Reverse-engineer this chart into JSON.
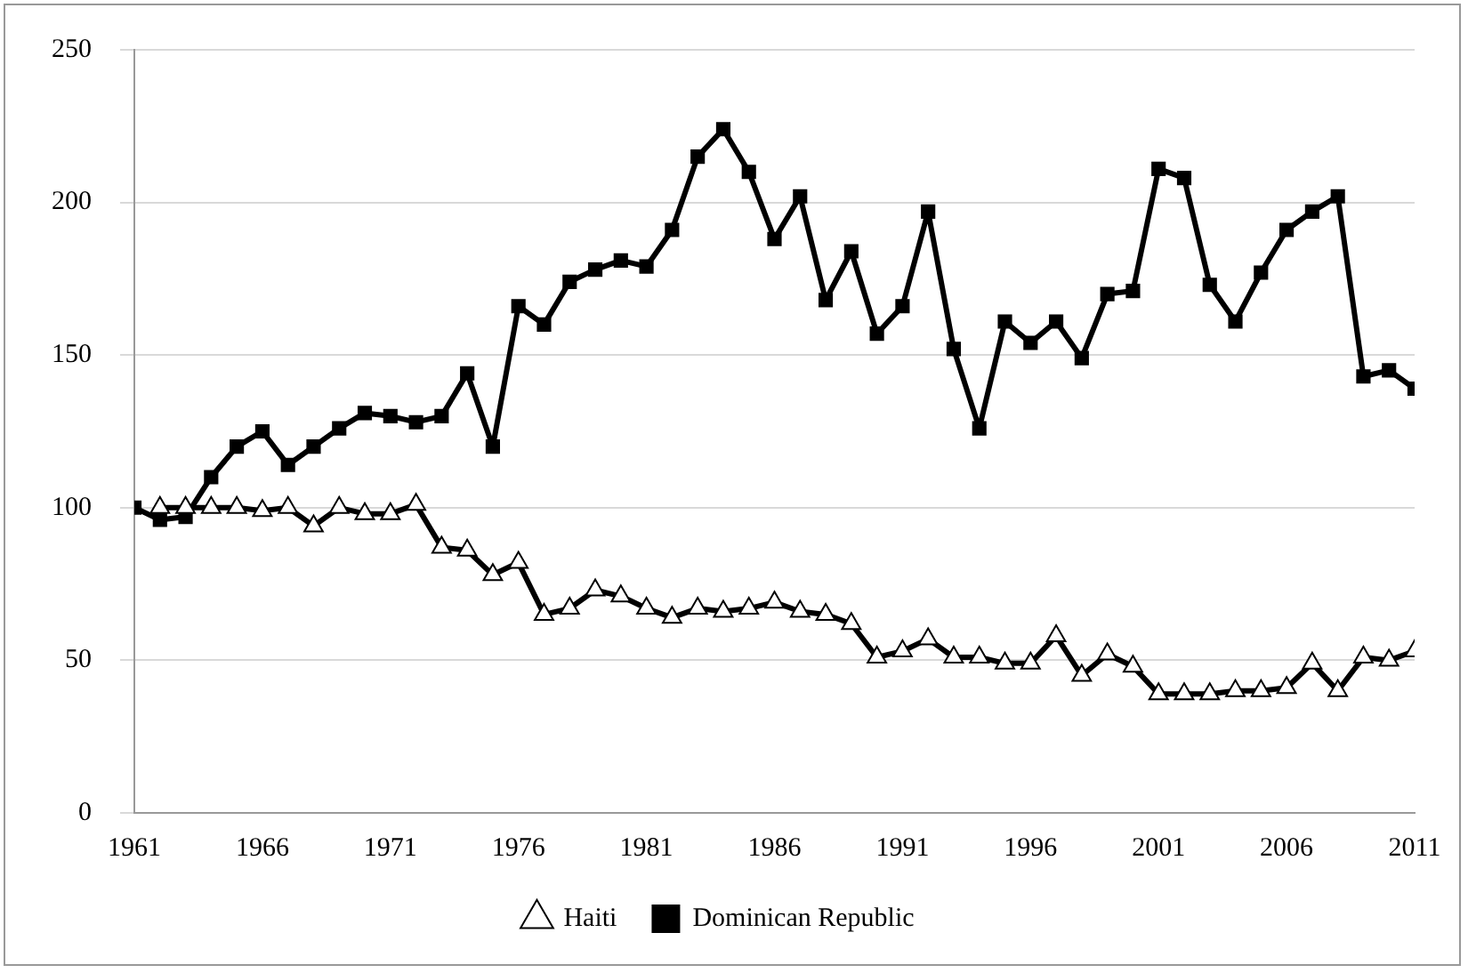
{
  "chart_data": {
    "type": "line",
    "x": [
      1961,
      1962,
      1963,
      1964,
      1965,
      1966,
      1967,
      1968,
      1969,
      1970,
      1971,
      1972,
      1973,
      1974,
      1975,
      1976,
      1977,
      1978,
      1979,
      1980,
      1981,
      1982,
      1983,
      1984,
      1985,
      1986,
      1987,
      1988,
      1989,
      1990,
      1991,
      1992,
      1993,
      1994,
      1995,
      1996,
      1997,
      1998,
      1999,
      2000,
      2001,
      2002,
      2003,
      2004,
      2005,
      2006,
      2007,
      2008,
      2009,
      2010,
      2011
    ],
    "series": [
      {
        "name": "Haiti",
        "color": "#000000",
        "marker": "triangle",
        "values": [
          null,
          100,
          100,
          100,
          100,
          99,
          100,
          94,
          100,
          98,
          98,
          101,
          87,
          86,
          78,
          82,
          65,
          67,
          73,
          71,
          67,
          64,
          67,
          66,
          67,
          69,
          66,
          65,
          62,
          51,
          53,
          57,
          51,
          51,
          49,
          49,
          58,
          45,
          52,
          48,
          39,
          39,
          39,
          40,
          40,
          41,
          49,
          40,
          51,
          50,
          53
        ]
      },
      {
        "name": "Dominican Republic",
        "color": "#000000",
        "marker": "square",
        "values": [
          100,
          96,
          97,
          110,
          120,
          125,
          114,
          120,
          126,
          131,
          130,
          128,
          130,
          144,
          120,
          166,
          160,
          174,
          178,
          181,
          179,
          191,
          215,
          224,
          210,
          188,
          202,
          168,
          184,
          157,
          166,
          197,
          152,
          126,
          161,
          154,
          161,
          149,
          170,
          171,
          211,
          208,
          173,
          161,
          177,
          191,
          197,
          202,
          143,
          145,
          139
        ]
      }
    ],
    "xlim": [
      1961,
      2011
    ],
    "xticks": [
      1961,
      1966,
      1971,
      1976,
      1981,
      1986,
      1991,
      1996,
      2001,
      2006,
      2011
    ],
    "ylim": [
      0,
      250
    ],
    "yticks": [
      0,
      50,
      100,
      150,
      200,
      250
    ],
    "grid": "y",
    "legend": "bottom",
    "line_style": "solid"
  }
}
